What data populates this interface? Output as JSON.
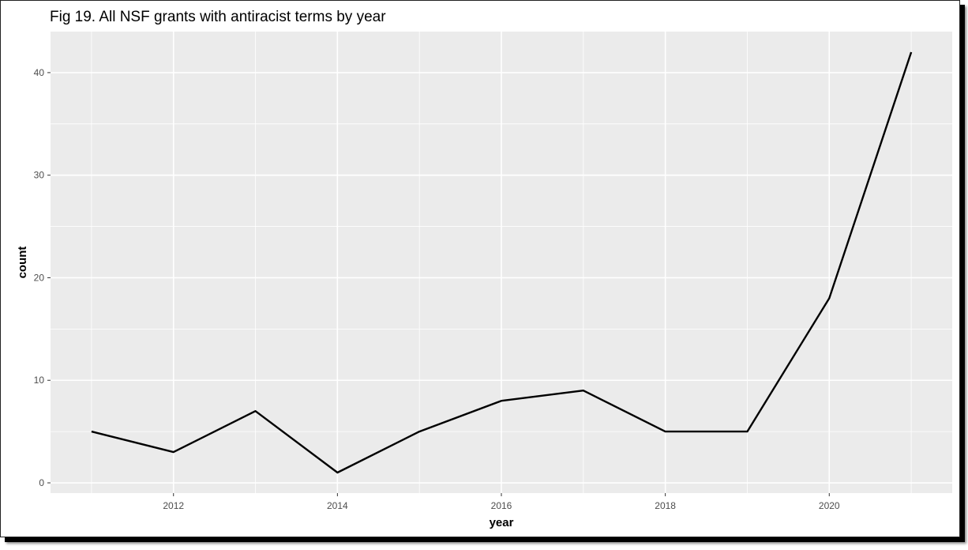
{
  "chart_data": {
    "type": "line",
    "title": "Fig 19. All NSF grants with antiracist terms by year",
    "xlabel": "year",
    "ylabel": "count",
    "xlim": [
      2010.5,
      2021.5
    ],
    "ylim": [
      -1,
      44
    ],
    "x_ticks": [
      2012,
      2014,
      2016,
      2018,
      2020
    ],
    "y_ticks": [
      0,
      10,
      20,
      30,
      40
    ],
    "grid": true,
    "series": [
      {
        "x": [
          2011,
          2012,
          2013,
          2014,
          2015,
          2016,
          2017,
          2018,
          2019,
          2020,
          2021
        ],
        "values": [
          5,
          3,
          7,
          1,
          5,
          8,
          9,
          5,
          5,
          18,
          42
        ]
      }
    ],
    "colors": {
      "panel": "#ebebeb",
      "grid": "#ffffff",
      "line": "#000000"
    }
  }
}
